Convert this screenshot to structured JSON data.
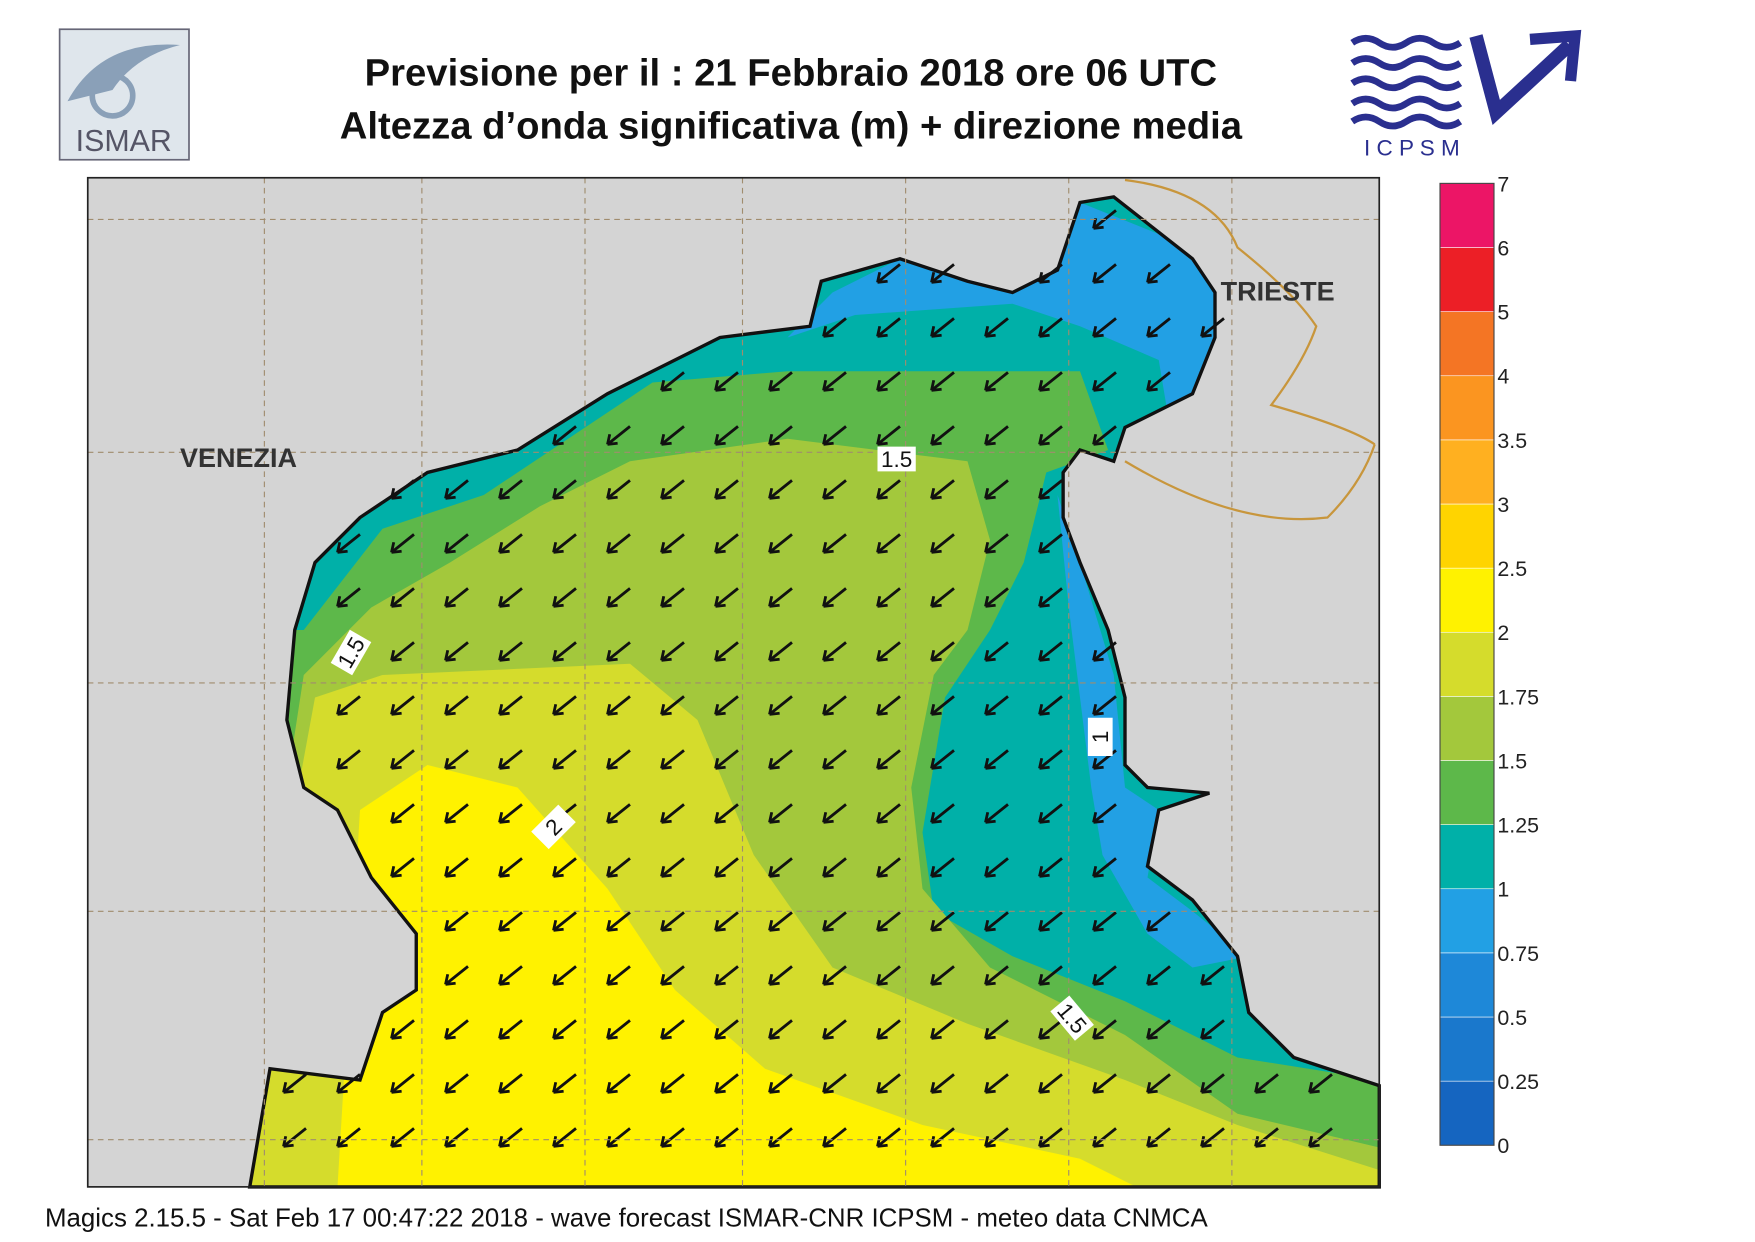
{
  "header": {
    "line1": "Previsione per il  :  21  Febbraio 2018   ore 06 UTC",
    "line2": "Altezza d’onda significativa (m) + direzione media",
    "logo_left": "ISMAR",
    "logo_right": "I C P S M"
  },
  "map": {
    "cities": [
      "VENEZIA",
      "TRIESTE"
    ],
    "contour_labels": [
      1.5,
      1.5,
      1,
      2,
      1.5
    ]
  },
  "legend": {
    "ticks": [
      0,
      0.25,
      0.5,
      0.75,
      1,
      1.25,
      1.5,
      1.75,
      2,
      2.5,
      3,
      3.5,
      4,
      5,
      6,
      7
    ],
    "colors": [
      "#1565c0",
      "#1a78cc",
      "#1e88d8",
      "#22a0e4",
      "#00b0a8",
      "#5db84a",
      "#a3c83c",
      "#d5dc2c",
      "#fff200",
      "#ffd400",
      "#ffb020",
      "#fb9520",
      "#f47524",
      "#ec1f26",
      "#ec1566"
    ]
  },
  "footer": "Magics 2.15.5 - Sat Feb 17 00:47:22 2018 - wave forecast  ISMAR-CNR  ICPSM - meteo data    CNMCA"
}
